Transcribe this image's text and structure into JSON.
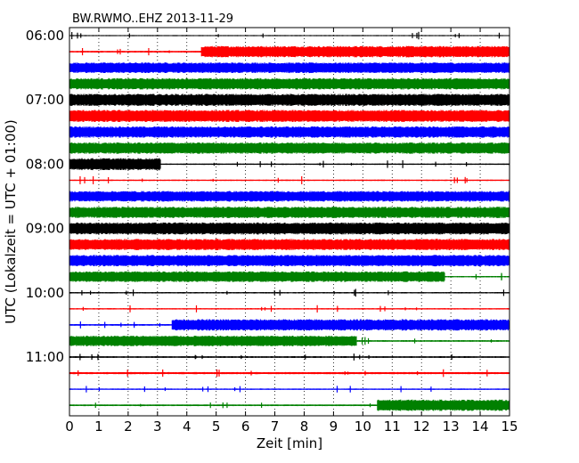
{
  "chart_data": {
    "type": "line",
    "title": "BW.RWMO..EHZ 2013-11-29",
    "xlabel": "Zeit  [min]",
    "ylabel": "UTC (Lokalzeit = UTC + 01:00)",
    "xlim": [
      0,
      15
    ],
    "x_ticks": [
      "0",
      "1",
      "2",
      "3",
      "4",
      "5",
      "6",
      "7",
      "8",
      "9",
      "10",
      "11",
      "12",
      "13",
      "14",
      "15"
    ],
    "y_ticks": [
      {
        "hour_index": 0,
        "label": "06:00"
      },
      {
        "hour_index": 1,
        "label": "07:00"
      },
      {
        "hour_index": 2,
        "label": "08:00"
      },
      {
        "hour_index": 3,
        "label": "09:00"
      },
      {
        "hour_index": 4,
        "label": "10:00"
      },
      {
        "hour_index": 5,
        "label": "11:00"
      }
    ],
    "grid": "vertical-dotted",
    "trace_colors": [
      "#000000",
      "#ff0000",
      "#0000ff",
      "#008000"
    ],
    "traces": [
      {
        "start": "06:00",
        "color": "#000000",
        "segments": [
          [
            0,
            15,
            0.08
          ]
        ]
      },
      {
        "start": "06:15",
        "color": "#ff0000",
        "segments": [
          [
            0,
            4.5,
            0.12
          ],
          [
            4.5,
            15,
            0.8
          ]
        ]
      },
      {
        "start": "06:30",
        "color": "#0000ff",
        "segments": [
          [
            0,
            15,
            0.75
          ]
        ]
      },
      {
        "start": "06:45",
        "color": "#008000",
        "segments": [
          [
            0,
            15,
            0.8
          ]
        ]
      },
      {
        "start": "07:00",
        "color": "#000000",
        "segments": [
          [
            0,
            15,
            0.85
          ]
        ]
      },
      {
        "start": "07:15",
        "color": "#ff0000",
        "segments": [
          [
            0,
            15,
            0.85
          ]
        ]
      },
      {
        "start": "07:30",
        "color": "#0000ff",
        "segments": [
          [
            0,
            15,
            0.8
          ]
        ]
      },
      {
        "start": "07:45",
        "color": "#008000",
        "segments": [
          [
            0,
            15,
            0.8
          ]
        ]
      },
      {
        "start": "08:00",
        "color": "#000000",
        "segments": [
          [
            0,
            3.1,
            0.85
          ],
          [
            3.1,
            15,
            0.1
          ]
        ]
      },
      {
        "start": "08:15",
        "color": "#ff0000",
        "segments": [
          [
            0,
            15,
            0.1
          ]
        ]
      },
      {
        "start": "08:30",
        "color": "#0000ff",
        "segments": [
          [
            0,
            15,
            0.75
          ]
        ]
      },
      {
        "start": "08:45",
        "color": "#008000",
        "segments": [
          [
            0,
            15,
            0.8
          ]
        ]
      },
      {
        "start": "09:00",
        "color": "#000000",
        "segments": [
          [
            0,
            15,
            0.85
          ]
        ]
      },
      {
        "start": "09:15",
        "color": "#ff0000",
        "segments": [
          [
            0,
            15,
            0.8
          ]
        ]
      },
      {
        "start": "09:30",
        "color": "#0000ff",
        "segments": [
          [
            0,
            15,
            0.8
          ]
        ]
      },
      {
        "start": "09:45",
        "color": "#008000",
        "segments": [
          [
            0,
            12.8,
            0.75
          ],
          [
            12.8,
            15,
            0.1
          ]
        ]
      },
      {
        "start": "10:00",
        "color": "#000000",
        "segments": [
          [
            0,
            15,
            0.1
          ]
        ]
      },
      {
        "start": "10:15",
        "color": "#ff0000",
        "segments": [
          [
            0,
            15,
            0.1
          ]
        ]
      },
      {
        "start": "10:30",
        "color": "#0000ff",
        "segments": [
          [
            0,
            3.5,
            0.12
          ],
          [
            3.5,
            15,
            0.8
          ]
        ]
      },
      {
        "start": "10:45",
        "color": "#008000",
        "segments": [
          [
            0,
            9.8,
            0.75
          ],
          [
            9.8,
            15,
            0.12
          ]
        ]
      },
      {
        "start": "11:00",
        "color": "#000000",
        "segments": [
          [
            0,
            15,
            0.12
          ]
        ]
      },
      {
        "start": "11:15",
        "color": "#ff0000",
        "segments": [
          [
            0,
            15,
            0.15
          ]
        ]
      },
      {
        "start": "11:30",
        "color": "#0000ff",
        "segments": [
          [
            0,
            15,
            0.1
          ]
        ]
      },
      {
        "start": "11:45",
        "color": "#008000",
        "segments": [
          [
            0,
            10.5,
            0.12
          ],
          [
            10.5,
            15,
            0.8
          ]
        ]
      }
    ]
  }
}
